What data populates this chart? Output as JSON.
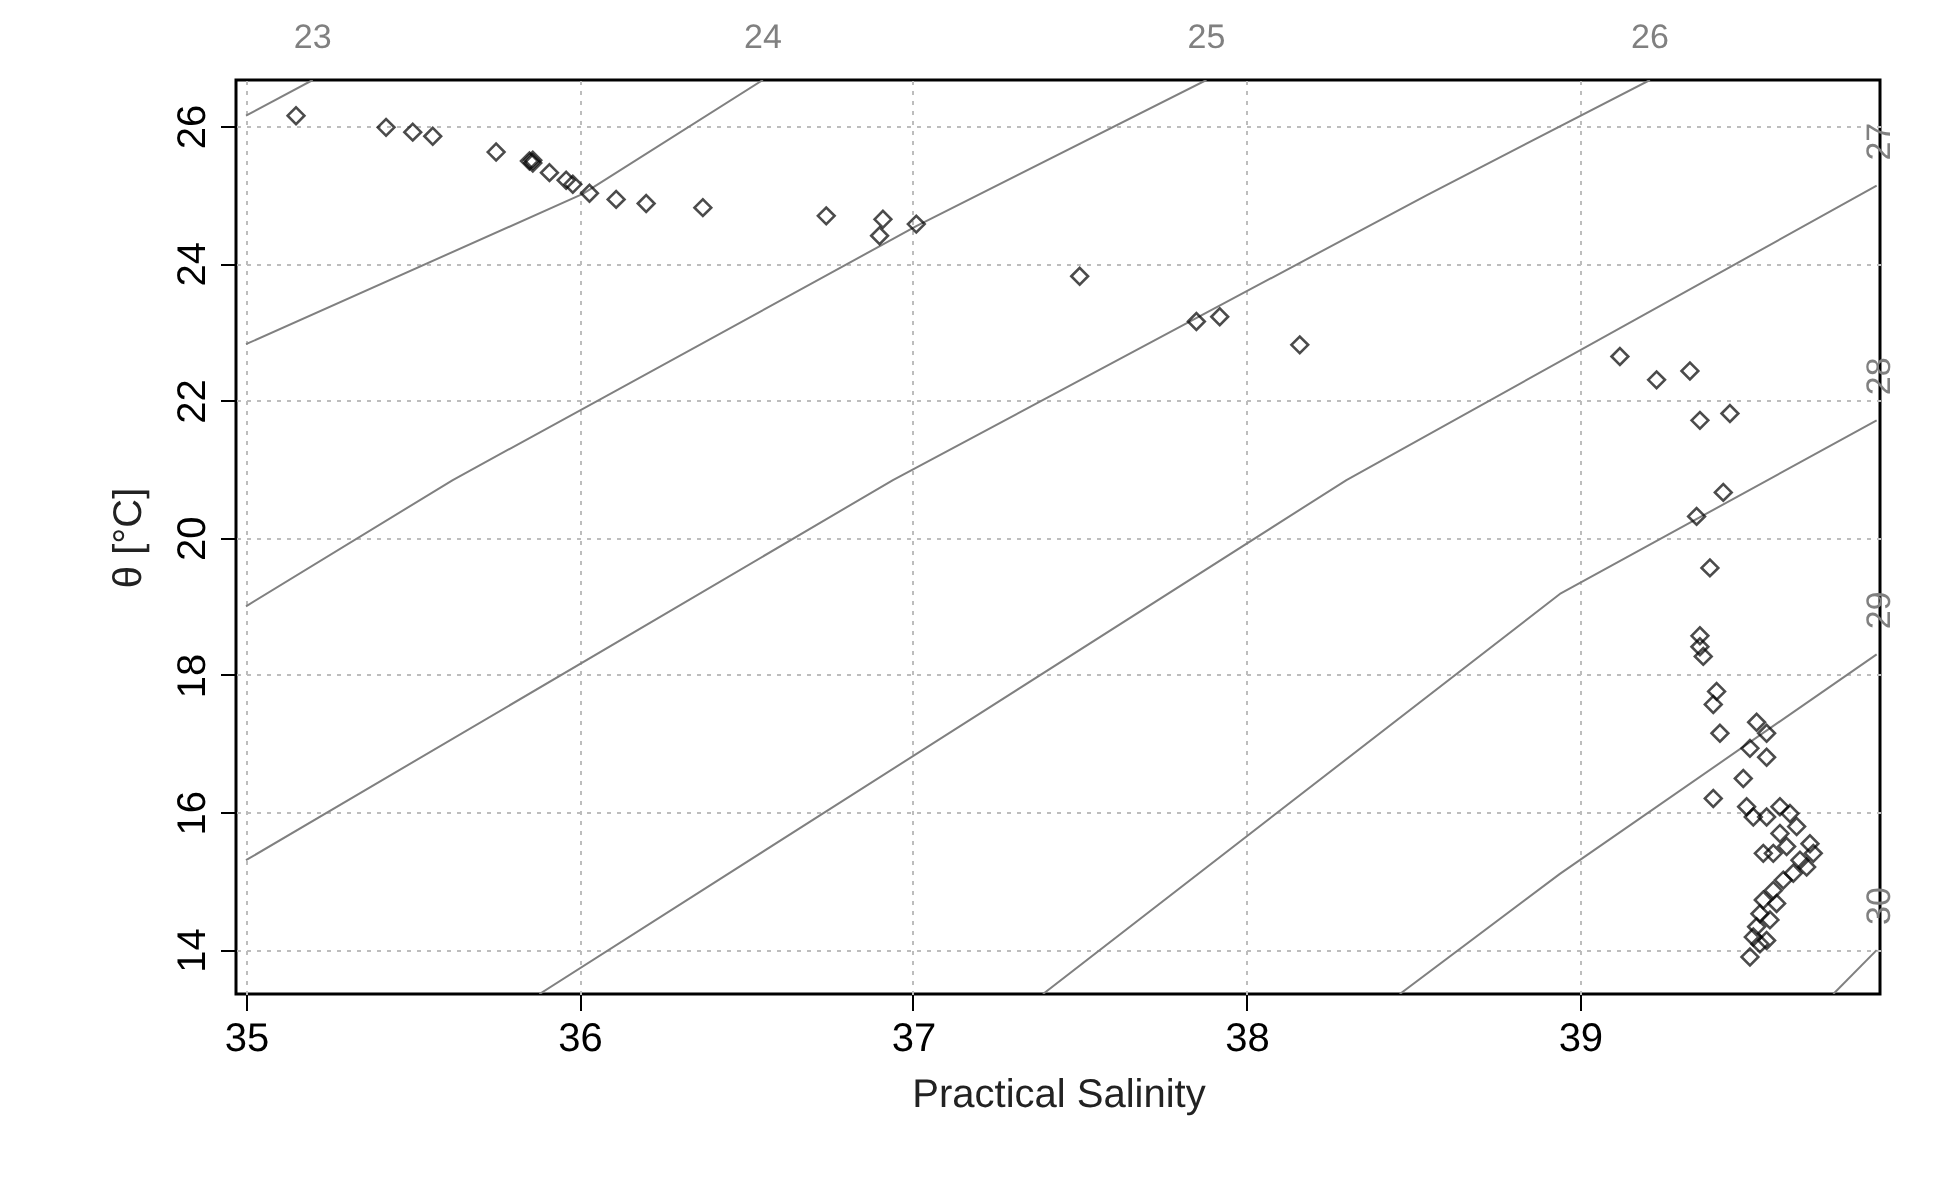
{
  "chart_data": {
    "type": "scatter",
    "xlabel": "Practical Salinity",
    "ylabel": "θ [°C]",
    "xlim": [
      34.97,
      39.9
    ],
    "ylim": [
      13.35,
      26.67
    ],
    "xticks": [
      35,
      36,
      37,
      38,
      39
    ],
    "yticks": [
      14,
      16,
      18,
      20,
      22,
      24,
      26
    ],
    "grid": true,
    "series": [
      {
        "name": "23",
        "type": "line",
        "color": "#808080",
        "x": [
          35.0,
          35.2
        ],
        "values": [
          26.15,
          26.67
        ]
      },
      {
        "name": "24",
        "type": "line",
        "color": "#808080",
        "x": [
          35.0,
          36.01,
          36.55
        ],
        "values": [
          22.82,
          25.01,
          26.67
        ]
      },
      {
        "name": "25",
        "type": "line",
        "color": "#808080",
        "x": [
          35.0,
          35.62,
          37.01,
          37.88
        ],
        "values": [
          19.0,
          20.84,
          24.54,
          26.67
        ]
      },
      {
        "name": "26",
        "type": "line",
        "color": "#808080",
        "x": [
          35.0,
          36.94,
          38.54,
          39.21
        ],
        "values": [
          15.3,
          20.84,
          24.99,
          26.67
        ]
      },
      {
        "name": "27",
        "type": "line",
        "color": "#808080",
        "x": [
          35.88,
          38.3,
          39.89
        ],
        "values": [
          13.35,
          20.84,
          25.13
        ]
      },
      {
        "name": "28",
        "type": "line",
        "color": "#808080",
        "x": [
          37.39,
          38.94,
          39.89
        ],
        "values": [
          13.35,
          19.18,
          21.71
        ]
      },
      {
        "name": "29",
        "type": "line",
        "color": "#808080",
        "x": [
          38.46,
          38.94,
          39.89
        ],
        "values": [
          13.35,
          15.1,
          18.3
        ]
      },
      {
        "name": "30",
        "type": "line",
        "color": "#808080",
        "x": [
          39.76,
          39.89
        ],
        "values": [
          13.35,
          13.99
        ]
      },
      {
        "marker": "diamond",
        "color": "#000000",
        "x": [
          35.15,
          35.42,
          35.5,
          35.56,
          35.75,
          35.85,
          35.86,
          35.86,
          35.91,
          35.96,
          35.98,
          36.03,
          36.11,
          36.2,
          36.37,
          36.74,
          36.91,
          36.9,
          37.01,
          37.5,
          37.85,
          37.92,
          38.16,
          39.12,
          39.23,
          39.33,
          39.36,
          39.45,
          39.43,
          39.35,
          39.39,
          39.36,
          39.36,
          39.37,
          39.41,
          39.4,
          39.42,
          39.53,
          39.56,
          39.51,
          39.56,
          39.4,
          39.49,
          39.5,
          39.52,
          39.6,
          39.63,
          39.65,
          39.6,
          39.55,
          39.62,
          39.69,
          39.7,
          39.68,
          39.64,
          39.61,
          39.58,
          39.55,
          39.54,
          39.53,
          39.52,
          39.54,
          39.51,
          39.56,
          39.57,
          39.59,
          39.56,
          39.58,
          39.66
        ],
        "values": [
          26.15,
          25.98,
          25.91,
          25.85,
          25.62,
          25.49,
          25.46,
          25.5,
          25.32,
          25.21,
          25.15,
          25.02,
          24.93,
          24.87,
          24.81,
          24.69,
          24.64,
          24.4,
          24.57,
          23.81,
          23.15,
          23.22,
          22.81,
          22.64,
          22.3,
          22.43,
          21.71,
          21.81,
          20.66,
          20.31,
          19.56,
          18.57,
          18.41,
          18.27,
          17.76,
          17.57,
          17.15,
          17.31,
          17.15,
          16.93,
          16.8,
          16.2,
          16.49,
          16.08,
          15.93,
          16.08,
          15.98,
          15.79,
          15.69,
          15.4,
          15.5,
          15.54,
          15.4,
          15.2,
          15.11,
          15.01,
          14.86,
          14.72,
          14.52,
          14.33,
          14.18,
          14.08,
          13.89,
          14.13,
          14.43,
          14.67,
          15.93,
          15.4,
          15.3
        ]
      }
    ]
  }
}
